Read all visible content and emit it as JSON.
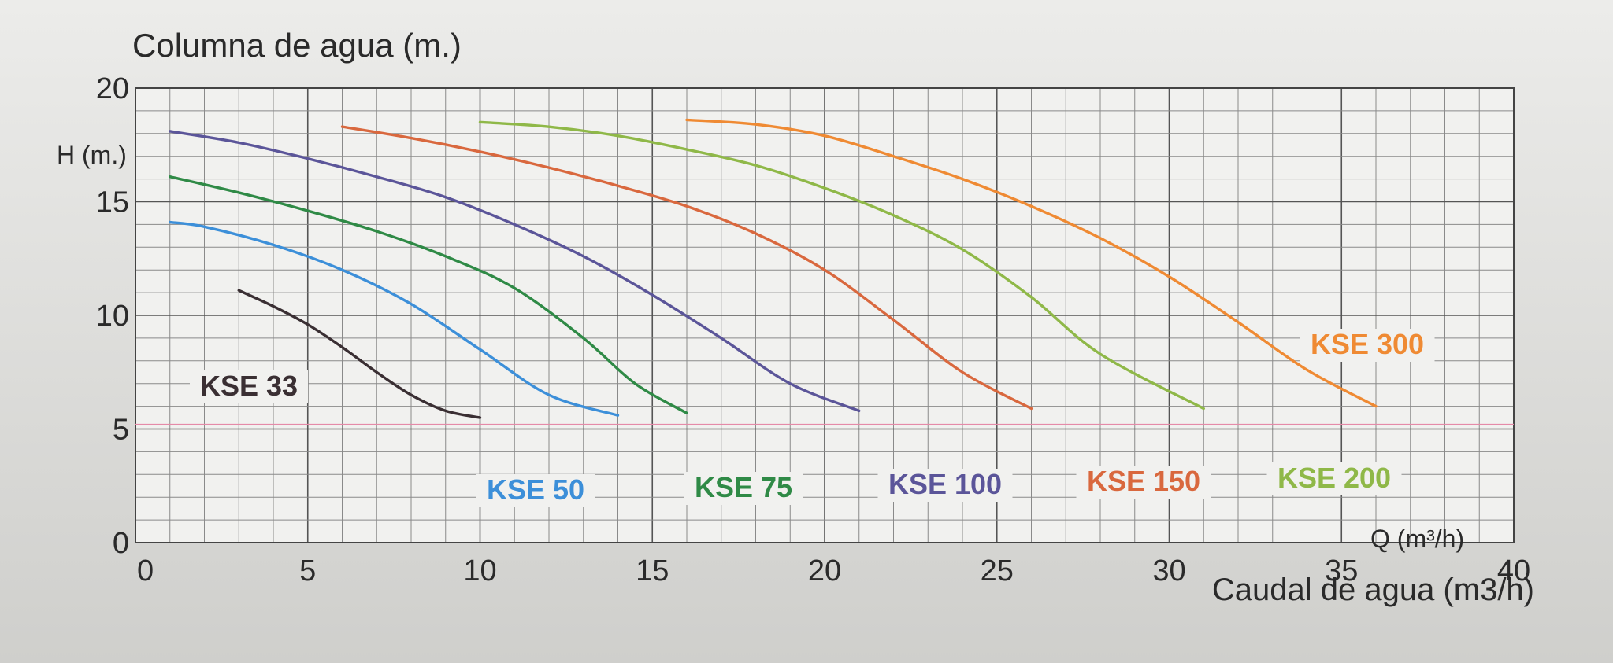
{
  "chart_data": {
    "type": "line",
    "ylabel": "Columna de agua (m.)",
    "y_unit_label": "H (m.)",
    "xlabel": "Caudal de agua (m3/h)",
    "x_unit_label": "Q (m³/h)",
    "xlim": [
      0,
      40
    ],
    "ylim": [
      0,
      20
    ],
    "x_ticks": [
      0,
      5,
      10,
      15,
      20,
      25,
      30,
      35,
      40
    ],
    "y_ticks": [
      0,
      5,
      10,
      15,
      20
    ],
    "grid": true,
    "reference_line": {
      "y": 5.2,
      "color": "#e58aa8"
    },
    "series": [
      {
        "name": "KSE 33",
        "color": "#3a2f33",
        "x": [
          3,
          4,
          5,
          6,
          7,
          8,
          9,
          10
        ],
        "y": [
          11.1,
          10.4,
          9.6,
          8.6,
          7.5,
          6.5,
          5.8,
          5.5
        ]
      },
      {
        "name": "KSE 50",
        "color": "#3c8fd9",
        "x": [
          1,
          2,
          4,
          6,
          8,
          10,
          12,
          14
        ],
        "y": [
          14.1,
          13.9,
          13.1,
          12.0,
          10.5,
          8.5,
          6.5,
          5.6
        ]
      },
      {
        "name": "KSE 75",
        "color": "#2f8a46",
        "x": [
          1,
          3,
          5,
          7,
          9,
          11,
          13,
          14.5,
          16
        ],
        "y": [
          16.1,
          15.4,
          14.6,
          13.7,
          12.6,
          11.2,
          9.0,
          7.0,
          5.7
        ]
      },
      {
        "name": "KSE 100",
        "color": "#5b5599",
        "x": [
          1,
          3,
          5,
          7,
          9,
          11,
          13,
          15,
          17,
          19,
          21
        ],
        "y": [
          18.1,
          17.6,
          16.9,
          16.1,
          15.2,
          14.0,
          12.6,
          10.9,
          9.0,
          7.0,
          5.8
        ]
      },
      {
        "name": "KSE 150",
        "color": "#d9683e",
        "x": [
          6,
          8,
          10,
          12,
          14,
          16,
          18,
          20,
          22,
          24,
          26
        ],
        "y": [
          18.3,
          17.8,
          17.2,
          16.5,
          15.7,
          14.8,
          13.6,
          12.0,
          9.8,
          7.5,
          5.9
        ]
      },
      {
        "name": "KSE 200",
        "color": "#8fb848",
        "x": [
          10,
          12,
          14,
          16,
          18,
          20,
          22,
          24,
          26,
          28,
          31
        ],
        "y": [
          18.5,
          18.3,
          17.9,
          17.3,
          16.6,
          15.6,
          14.4,
          12.9,
          10.8,
          8.3,
          5.9
        ]
      },
      {
        "name": "KSE 300",
        "color": "#ef8a33",
        "x": [
          16,
          18,
          20,
          22,
          24,
          26,
          28,
          30,
          32,
          34,
          36
        ],
        "y": [
          18.6,
          18.4,
          17.9,
          17.0,
          16.0,
          14.8,
          13.4,
          11.7,
          9.7,
          7.6,
          6.0
        ]
      }
    ]
  }
}
